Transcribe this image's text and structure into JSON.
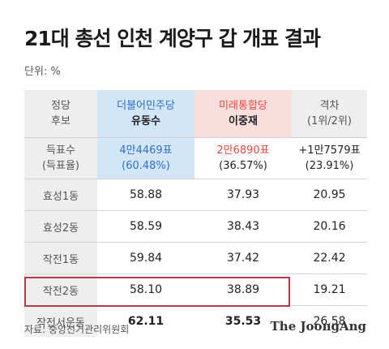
{
  "title": "21대 총선 인천 계양구 갑 개표 결과",
  "unit": "단위: %",
  "header": {
    "col1": [
      "정당",
      "후보"
    ],
    "col2": [
      "더불어민주당",
      "유동수"
    ],
    "col3": [
      "미래통합당",
      "이중재"
    ],
    "col4": [
      "격차",
      "(1위/2위)"
    ]
  },
  "votes": {
    "label": [
      "득표수",
      "(득표율)"
    ],
    "c2": [
      "4만4469표",
      "(60.48%)"
    ],
    "c3": [
      "2만6890표",
      "(36.57%)"
    ],
    "c4": [
      "+1만7579표",
      "(23.91%)"
    ]
  },
  "rows": [
    {
      "label": "효성1동",
      "c2": "58.88",
      "c3": "37.93",
      "c4": "20.95"
    },
    {
      "label": "효성2동",
      "c2": "58.59",
      "c3": "38.43",
      "c4": "20.16"
    },
    {
      "label": "작전1동",
      "c2": "59.84",
      "c3": "37.42",
      "c4": "22.42"
    },
    {
      "label": "작전2동",
      "c2": "58.10",
      "c3": "38.89",
      "c4": "19.21"
    },
    {
      "label": "작전서운동",
      "c2": "62.11",
      "c3": "35.53",
      "c4": "26.58"
    }
  ],
  "source": "자료: 중앙선거관리위원회",
  "logo": "The JoongAng",
  "colors": {
    "democratic": "#2f6fd0",
    "united_future": "#e94b3c",
    "highlight": "#b8384b"
  }
}
